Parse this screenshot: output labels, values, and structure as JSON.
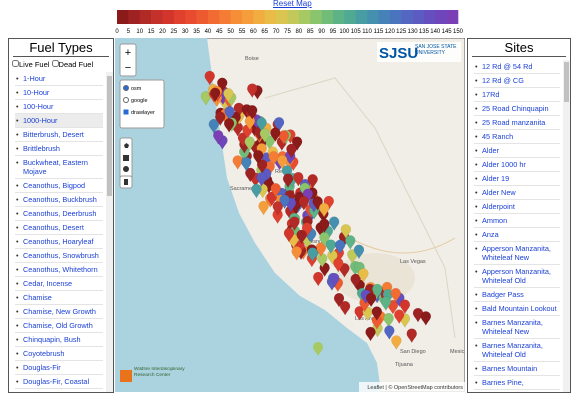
{
  "header": {
    "reset_link": "Reset Map"
  },
  "colorbar": {
    "ticks": [
      0,
      5,
      10,
      15,
      20,
      25,
      30,
      35,
      40,
      45,
      50,
      55,
      60,
      65,
      70,
      75,
      80,
      85,
      90,
      95,
      100,
      105,
      110,
      115,
      120,
      125,
      130,
      135,
      140,
      145,
      150
    ],
    "colors": [
      "#8b1a1a",
      "#9e2222",
      "#b22a26",
      "#c4302a",
      "#d2352c",
      "#e0402e",
      "#e84b2f",
      "#ee5a30",
      "#f26b32",
      "#f47c34",
      "#f68d37",
      "#f59d3a",
      "#f2ad40",
      "#e8bc47",
      "#d9c550",
      "#c2c95a",
      "#a6c963",
      "#8ac46c",
      "#70bc78",
      "#5db385",
      "#4fa993",
      "#479da1",
      "#4490ae",
      "#4582b8",
      "#4b74bf",
      "#5367c2",
      "#5c5bc2",
      "#654fbf",
      "#6e45ba",
      "#7a3fb5"
    ]
  },
  "fuel_panel": {
    "title": "Fuel Types",
    "live_fuel": "Live Fuel",
    "dead_fuel": "Dead Fuel",
    "items": [
      "1-Hour",
      "10-Hour",
      "100-Hour",
      "1000-Hour",
      "Bitterbrush, Desert",
      "Brittlebrush",
      "Buckwheat, Eastern Mojave",
      "Ceanothus, Bigpod",
      "Ceanothus, Buckbrush",
      "Ceanothus, Deerbrush",
      "Ceanothus, Desert",
      "Ceanothus, Hoaryleaf",
      "Ceanothus, Snowbrush",
      "Ceanothus, Whitethorn",
      "Cedar, Incense",
      "Chamise",
      "Chamise, New Growth",
      "Chamise, Old Growth",
      "Chinquapin, Bush",
      "Coyotebrush",
      "Douglas-Fir",
      "Douglas-Fir, Coastal"
    ]
  },
  "sites_panel": {
    "title": "Sites",
    "items": [
      "12 Rd @ 54 Rd",
      "12 Rd @ CG",
      "17Rd",
      "25 Road Chinquapin",
      "25 Road manzanita",
      "45 Ranch",
      "Alder",
      "Alder 1000 hr",
      "Alder 19",
      "Alder New",
      "Alderpoint",
      "Ammon",
      "Anza",
      "Apperson Manzanita, Whiteleaf New",
      "Apperson Manzanita, Whiteleaf Old",
      "Badger Pass",
      "Bald Mountain Lookout",
      "Barnes Manzanita, Whiteleaf New",
      "Barnes Manzanita, Whiteleaf Old",
      "Barnes Mountain",
      "Barnes Pine,"
    ]
  },
  "map": {
    "layers": [
      "osm",
      "google",
      "drawlayer"
    ],
    "zoom_in": "+",
    "zoom_out": "−",
    "places": [
      "Boise",
      "Reno",
      "Sacramento",
      "Fresno",
      "Las Vegas",
      "Los Angeles",
      "San Diego",
      "Mexicali",
      "Tijuana"
    ],
    "logo": "SJSU",
    "logo_sub": "SAN JOSÉ STATE UNIVERSITY",
    "center": "Wildfire Interdisciplinary Research Center",
    "attribution": "Leaflet | © OpenStreetMap contributors"
  }
}
